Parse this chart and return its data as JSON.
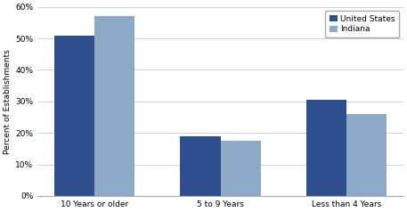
{
  "categories": [
    "10 Years or older",
    "5 to 9 Years",
    "Less than 4 Years"
  ],
  "us_values": [
    0.51,
    0.19,
    0.305
  ],
  "indiana_values": [
    0.57,
    0.175,
    0.26
  ],
  "us_color": "#2E4E8E",
  "indiana_color": "#8DA9C8",
  "ylabel": "Percent of Establishments",
  "ylim": [
    0,
    0.6
  ],
  "yticks": [
    0.0,
    0.1,
    0.2,
    0.3,
    0.4,
    0.5,
    0.6
  ],
  "legend_labels": [
    "United States",
    "Indiana"
  ],
  "bar_width": 0.32,
  "background_color": "#ffffff",
  "grid_color": "#cccccc"
}
